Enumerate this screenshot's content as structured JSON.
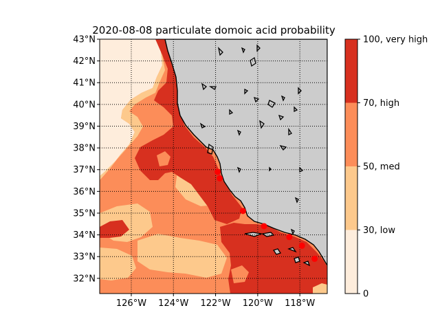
{
  "title": "2020-08-08 particulate domoic acid probability",
  "map": {
    "lat_range": [
      31.3,
      43.0
    ],
    "lon_range": [
      -127.5,
      -116.7
    ],
    "land_color": "#cccccc",
    "coastline_color": "#000000",
    "graticule_style": "dotted",
    "lat_ticks": [
      {
        "value": 32,
        "label": "32°N"
      },
      {
        "value": 33,
        "label": "33°N"
      },
      {
        "value": 34,
        "label": "34°N"
      },
      {
        "value": 35,
        "label": "35°N"
      },
      {
        "value": 36,
        "label": "36°N"
      },
      {
        "value": 37,
        "label": "37°N"
      },
      {
        "value": 38,
        "label": "38°N"
      },
      {
        "value": 39,
        "label": "39°N"
      },
      {
        "value": 40,
        "label": "40°N"
      },
      {
        "value": 41,
        "label": "41°N"
      },
      {
        "value": 42,
        "label": "42°N"
      },
      {
        "value": 43,
        "label": "43°N"
      }
    ],
    "lon_ticks": [
      {
        "value": -126,
        "label": "126°W"
      },
      {
        "value": -124,
        "label": "124°W"
      },
      {
        "value": -122,
        "label": "122°W"
      },
      {
        "value": -120,
        "label": "120°W"
      },
      {
        "value": -118,
        "label": "118°W"
      }
    ],
    "station_color": "#ff0000",
    "stations": [
      {
        "lon": -121.9,
        "lat": 36.9
      },
      {
        "lon": -121.8,
        "lat": 36.6
      },
      {
        "lon": -120.7,
        "lat": 35.1
      },
      {
        "lon": -119.7,
        "lat": 34.4
      },
      {
        "lon": -118.5,
        "lat": 33.9
      },
      {
        "lon": -117.9,
        "lat": 33.5
      },
      {
        "lon": -117.3,
        "lat": 32.9
      }
    ]
  },
  "colorbar": {
    "levels": [
      {
        "from": 0,
        "to": 30,
        "color": "#feeddc"
      },
      {
        "from": 30,
        "to": 50,
        "color": "#fdc98c"
      },
      {
        "from": 50,
        "to": 70,
        "color": "#fc8d59"
      },
      {
        "from": 70,
        "to": 100,
        "color": "#d7301f"
      }
    ],
    "ticks": [
      {
        "value": 0,
        "label": "0"
      },
      {
        "value": 30,
        "label": "30, low"
      },
      {
        "value": 50,
        "label": "50, med"
      },
      {
        "value": 70,
        "label": "70, high"
      },
      {
        "value": 100,
        "label": "100, very high"
      }
    ]
  }
}
